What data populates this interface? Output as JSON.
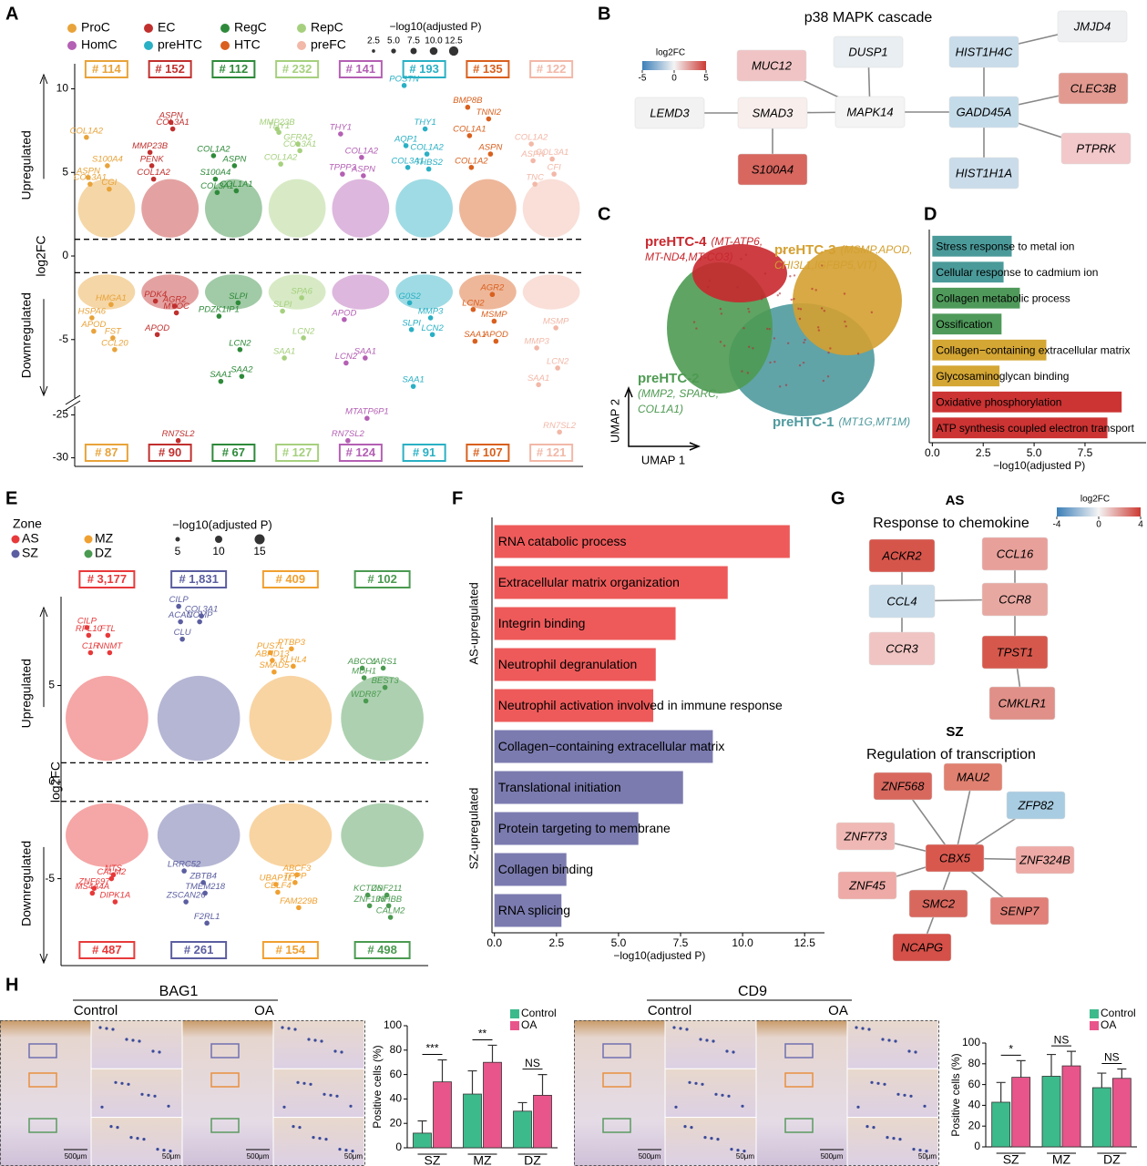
{
  "panel_labels": [
    "A",
    "B",
    "C",
    "D",
    "E",
    "F",
    "G",
    "H"
  ],
  "panel_a": {
    "clusters": [
      {
        "name": "ProC",
        "color": "#e8a33a",
        "up_count": "# 114",
        "down_count": "# 87",
        "genes": [
          "COL1A2",
          "S100A4",
          "ASPN",
          "CGI",
          "COL3A1",
          "HMGA1",
          "HSPA6",
          "FST",
          "APOD",
          "CCL20"
        ],
        "log2fc": [
          7.1,
          5.4,
          4.7,
          4.0,
          4.3,
          -2.9,
          -3.7,
          -4.9,
          -4.5,
          -5.6
        ]
      },
      {
        "name": "EC",
        "color": "#c0302e",
        "up_count": "# 152",
        "down_count": "# 90",
        "genes": [
          "MMP23B",
          "ASPN",
          "PENK",
          "COL3A1",
          "COL1A2",
          "AGR2",
          "PDK4",
          "MYOC",
          "APOD",
          "RN7SL2"
        ],
        "log2fc": [
          6.2,
          8.0,
          5.4,
          7.6,
          4.6,
          -3.0,
          -2.7,
          -3.4,
          -4.7,
          -28
        ]
      },
      {
        "name": "RegC",
        "color": "#2e8a3a",
        "up_count": "# 112",
        "down_count": "# 67",
        "genes": [
          "COL1A2",
          "ASPN",
          "S100A4",
          "COL1A1",
          "COL3A1",
          "SLPI",
          "PDZK1IP1",
          "LCN2",
          "SAA1",
          "SAA2"
        ],
        "log2fc": [
          6.0,
          5.4,
          4.6,
          3.9,
          3.8,
          -2.8,
          -3.6,
          -5.6,
          -7.5,
          -7.2
        ]
      },
      {
        "name": "RepC",
        "color": "#a6d07e",
        "up_count": "# 232",
        "down_count": "# 127",
        "genes": [
          "MMP23B",
          "GFRA2",
          "THY1",
          "COL3A1",
          "COL1A2",
          "SPA6",
          "SLPI",
          "LCN2",
          "SAA1"
        ],
        "log2fc": [
          7.6,
          6.7,
          7.4,
          6.3,
          5.5,
          -2.5,
          -3.3,
          -4.9,
          -6.1
        ]
      },
      {
        "name": "HomC",
        "color": "#b460b4",
        "up_count": "# 141",
        "down_count": "# 124",
        "genes": [
          "THY1",
          "COL1A2",
          "TPPP3",
          "ASPN",
          "APOD",
          "SAA1",
          "LCN2",
          "MTATP6P1",
          "RN7SL2"
        ],
        "log2fc": [
          7.3,
          5.9,
          4.9,
          4.8,
          -3.8,
          -6.1,
          -6.4,
          -25.4,
          -28
        ]
      },
      {
        "name": "preHTC",
        "color": "#2ab0c4",
        "up_count": "# 193",
        "down_count": "# 91",
        "genes": [
          "POSTN",
          "THY1",
          "AQP1",
          "COL1A2",
          "COL3A1",
          "THBS2",
          "G0S2",
          "MMP3",
          "SLPI",
          "LCN2",
          "SAA1"
        ],
        "log2fc": [
          10.2,
          7.6,
          6.6,
          6.1,
          5.3,
          5.2,
          -2.8,
          -3.7,
          -4.4,
          -4.7,
          -7.8
        ]
      },
      {
        "name": "HTC",
        "color": "#d9601e",
        "up_count": "# 135",
        "down_count": "# 107",
        "genes": [
          "BMP8B",
          "TNNI2",
          "COL1A1",
          "ASPN",
          "COL1A2",
          "AGR2",
          "LCN2",
          "MSMP",
          "SAA1",
          "APOD"
        ],
        "log2fc": [
          8.9,
          8.2,
          7.2,
          6.1,
          5.3,
          -2.3,
          -3.2,
          -3.9,
          -5.1,
          -5.1
        ]
      },
      {
        "name": "preFC",
        "color": "#f2b8a8",
        "up_count": "# 122",
        "down_count": "# 121",
        "genes": [
          "COL1A2",
          "COL3A1",
          "ASPN",
          "CFI",
          "TNC",
          "MSMP",
          "MMP3",
          "LCN2",
          "SAA1",
          "RN7SL2"
        ],
        "log2fc": [
          6.7,
          5.8,
          5.7,
          4.9,
          4.3,
          -4.3,
          -5.5,
          -6.7,
          -7.7,
          -27
        ]
      }
    ],
    "size_legend_title": "−log10(adjusted P)",
    "size_legend": [
      2.5,
      {
        "value": 5,
        "label": "5.0"
      },
      7.5,
      {
        "value": 10,
        "label": "10.0"
      },
      12.5
    ],
    "y_label": "log2FC",
    "up_label": "Upregulated",
    "down_label": "Downregulated",
    "ylim": [
      -8.5,
      11.5
    ],
    "yticks": [
      10,
      5,
      0,
      -5
    ],
    "ylim_low": [
      -31,
      -24
    ],
    "yticks_low": [
      -25,
      -30
    ],
    "thresholds": [
      1,
      -1
    ]
  },
  "panel_b": {
    "title": "p38 MAPK cascade",
    "legend_title": "log2FC",
    "legend_ticks": [
      -5,
      0,
      5
    ],
    "nodes": [
      {
        "label": "MUC12",
        "color": "#f0c4c4"
      },
      {
        "label": "DUSP1",
        "color": "#e9eef2"
      },
      {
        "label": "HIST1H4C",
        "color": "#c8dcea"
      },
      {
        "label": "JMJD4",
        "color": "#eef0f2"
      },
      {
        "label": "LEMD3",
        "color": "#f2f2f2"
      },
      {
        "label": "SMAD3",
        "color": "#f8eeec"
      },
      {
        "label": "MAPK14",
        "color": "#f4f4f4"
      },
      {
        "label": "GADD45A",
        "color": "#c4dcea"
      },
      {
        "label": "CLEC3B",
        "color": "#e29a90"
      },
      {
        "label": "PTPRK",
        "color": "#f2c8ca"
      },
      {
        "label": "S100A4",
        "color": "#d7675f"
      },
      {
        "label": "HIST1H1A",
        "color": "#cadcea"
      }
    ]
  },
  "panel_c": {
    "x_label": "UMAP 1",
    "y_label": "UMAP 2",
    "clusters": [
      {
        "name": "preHTC-4",
        "color": "#c8282e",
        "genes": [
          "(MT-ATP6,",
          "MT-ND4,MT-CO3)"
        ]
      },
      {
        "name": "preHTC-3",
        "color": "#d4a030",
        "genes": [
          "(MSMP,APOD,",
          "CHI3L1,IGFBP5,VIT)"
        ]
      },
      {
        "name": "preHTC-2",
        "color": "#4e9a52",
        "genes": [
          "(MMP2, SPARC,",
          "COL1A1)"
        ]
      },
      {
        "name": "preHTC-1",
        "color": "#4f9a9e",
        "genes": [
          "(MT1G,MT1M)"
        ]
      }
    ]
  },
  "panel_e": {
    "zone_title": "Zone",
    "zones": [
      {
        "name": "AS",
        "color": "#e8393a",
        "up_count": "# 3,177",
        "down_count": "# 487",
        "genes": [
          "CILP",
          "FTL",
          "RPL10",
          "NNMT",
          "C1R",
          "CALM2",
          "MS4A4A",
          "NTS",
          "ZNF697",
          "DIPK1A"
        ],
        "log2fc": [
          8.0,
          7.6,
          7.6,
          6.7,
          6.7,
          -5.0,
          -5.75,
          -4.8,
          -5.5,
          -6.2
        ]
      },
      {
        "name": "SZ",
        "color": "#5b5ea0",
        "up_count": "# 1,831",
        "down_count": "# 261",
        "genes": [
          "CILP",
          "COMP",
          "ACAN",
          "COL3A1",
          "CLU",
          "ZBTB4",
          "LRRC52",
          "TMEM218",
          "ZSCAN26",
          "F2RL1"
        ],
        "log2fc": [
          9.1,
          8.3,
          8.3,
          8.6,
          7.4,
          -5.2,
          -4.6,
          -5.75,
          -6.2,
          -7.3
        ]
      },
      {
        "name": "MZ",
        "color": "#f0a030",
        "up_count": "# 409",
        "down_count": "# 154",
        "genes": [
          "PUS7L",
          "PTBP3",
          "ABHD13",
          "KLHL4",
          "SMAD5",
          "TPPP",
          "UBAP1L",
          "ABCF3",
          "CELF4",
          "FAM229B"
        ],
        "log2fc": [
          6.7,
          6.9,
          6.3,
          6.0,
          5.7,
          -5.2,
          -5.3,
          -4.8,
          -5.7,
          -6.5
        ]
      },
      {
        "name": "DZ",
        "color": "#4a9a50",
        "up_count": "# 102",
        "down_count": "# 498",
        "genes": [
          "ABCC1",
          "YARS1",
          "MDH1",
          "BEST3",
          "WDR87",
          "ZNF211",
          "KCTD6",
          "INHBB",
          "ZNF138",
          "CALM2"
        ],
        "log2fc": [
          5.9,
          5.9,
          5.4,
          4.9,
          4.2,
          -5.85,
          -5.85,
          -6.4,
          -6.4,
          -7.0
        ]
      }
    ],
    "size_legend_title": "−log10(adjusted P)",
    "size_legend": [
      5,
      10,
      15
    ],
    "y_label": "log2FC",
    "up_label": "Upregulated",
    "down_label": "Downregulated",
    "ylim": [
      -9.5,
      9.6
    ],
    "yticks": [
      5,
      0,
      -5
    ],
    "thresholds": [
      1,
      -1
    ]
  },
  "panel_g": {
    "legend_title": "log2FC",
    "legend_ticks": [
      -4,
      0,
      4
    ],
    "networks": [
      {
        "zone": "AS",
        "title": "Response to chemokine",
        "nodes": [
          {
            "label": "ACKR2",
            "color": "#d6554b"
          },
          {
            "label": "CCL16",
            "color": "#e8a09a"
          },
          {
            "label": "CCL4",
            "color": "#c8dcea"
          },
          {
            "label": "CCR8",
            "color": "#e8a8a2"
          },
          {
            "label": "CCR3",
            "color": "#f0c4c2"
          },
          {
            "label": "TPST1",
            "color": "#d6584c"
          },
          {
            "label": "CMKLR1",
            "color": "#e09088"
          }
        ]
      },
      {
        "zone": "SZ",
        "title": "Regulation of transcription",
        "nodes": [
          {
            "label": "ZNF568",
            "color": "#d8685e"
          },
          {
            "label": "MAU2",
            "color": "#e08070"
          },
          {
            "label": "ZFP82",
            "color": "#a8cce2"
          },
          {
            "label": "ZNF773",
            "color": "#f0b8b4"
          },
          {
            "label": "CBX5",
            "color": "#d8584e"
          },
          {
            "label": "ZNF324B",
            "color": "#eeaaa6"
          },
          {
            "label": "ZNF45",
            "color": "#eeaaa6"
          },
          {
            "label": "SMC2",
            "color": "#d8685e"
          },
          {
            "label": "SENP7",
            "color": "#e08078"
          },
          {
            "label": "NCAPG",
            "color": "#d45048"
          }
        ]
      }
    ]
  },
  "panel_h": {
    "images": [
      {
        "title": "BAG1",
        "left": "Control",
        "right": "OA",
        "scale_big": "500μm",
        "scale_small": "50μm"
      },
      {
        "title": "CD9",
        "left": "Control",
        "right": "OA",
        "scale_big": "500μm",
        "scale_small": "50μm"
      }
    ]
  },
  "chart_data": [
    {
      "type": "hbar",
      "categories": [
        "Stress response to metal ion",
        "Cellular response to cadmium ion",
        "Collagen metabolic process",
        "Ossification",
        "Collagen−containing extracellular matrix",
        "Glycosaminoglycan binding",
        "Oxidative phosphorylation",
        "ATP synthesis coupled electron transport"
      ],
      "values": [
        3.9,
        3.5,
        4.3,
        3.4,
        5.6,
        3.3,
        9.3,
        8.6
      ],
      "colors": [
        "#4b9a9a",
        "#4b9a9a",
        "#4f9a5a",
        "#4f9a5a",
        "#d4a634",
        "#d4a634",
        "#cc3333",
        "#cc3333"
      ],
      "xlim": [
        -0.15,
        10.5
      ],
      "xticks": [
        {
          "value": 0,
          "label": "0.0"
        },
        2.5,
        {
          "value": 5,
          "label": "5.0"
        },
        7.5
      ],
      "x_label": "−log10(adjusted P)"
    },
    {
      "type": "hbar",
      "categories": [
        "RNA catabolic process",
        "Extracellular matrix organization",
        "Integrin binding",
        "Neutrophil degranulation",
        "Neutrophil activation involved in immune response",
        "Collagen−containing extracellular matrix",
        "Translational initiation",
        "Protein targeting to membrane",
        "Collagen binding",
        "RNA splicing"
      ],
      "values": [
        11.9,
        9.4,
        7.3,
        6.5,
        6.4,
        8.8,
        7.6,
        5.8,
        2.9,
        2.7
      ],
      "colors": [
        "#ee5a5a",
        "#ee5a5a",
        "#ee5a5a",
        "#ee5a5a",
        "#ee5a5a",
        "#7b7bb0",
        "#7b7bb0",
        "#7b7bb0",
        "#7b7bb0",
        "#7b7bb0"
      ],
      "group_labels": [
        "AS-upregulated",
        "SZ-upregulated"
      ],
      "xlim": [
        -0.1,
        13.3
      ],
      "xticks": [
        {
          "value": 0,
          "label": "0.0"
        },
        2.5,
        {
          "value": 5,
          "label": "5.0"
        },
        7.5,
        {
          "value": 10,
          "label": "10.0"
        },
        12.5
      ],
      "x_label": "−log10(adjusted P)"
    },
    {
      "type": "grouped_bar",
      "categories": [
        "SZ",
        "MZ",
        "DZ"
      ],
      "series": [
        {
          "name": "Control",
          "color": "#3dba8c",
          "values": [
            12,
            44,
            30
          ],
          "errors": [
            10,
            19,
            7
          ]
        },
        {
          "name": "OA",
          "color": "#e8558a",
          "values": [
            54,
            70,
            43
          ],
          "errors": [
            18,
            14,
            17
          ]
        }
      ],
      "significance": [
        "***",
        "**",
        "NS"
      ],
      "ylim": [
        0,
        100
      ],
      "yticks": [
        0,
        20,
        40,
        60,
        80,
        100
      ],
      "y_label": "Positive cells (%)"
    },
    {
      "type": "grouped_bar",
      "categories": [
        "SZ",
        "MZ",
        "DZ"
      ],
      "series": [
        {
          "name": "Control",
          "color": "#3dba8c",
          "values": [
            43,
            68,
            57
          ],
          "errors": [
            19,
            21,
            14
          ]
        },
        {
          "name": "OA",
          "color": "#e8558a",
          "values": [
            67,
            78,
            66
          ],
          "errors": [
            16,
            14,
            9
          ]
        }
      ],
      "significance": [
        "*",
        "NS",
        "NS"
      ],
      "ylim": [
        0,
        100
      ],
      "yticks": [
        0,
        20,
        40,
        60,
        80,
        100
      ],
      "y_label": "Positive cells (%)"
    }
  ]
}
